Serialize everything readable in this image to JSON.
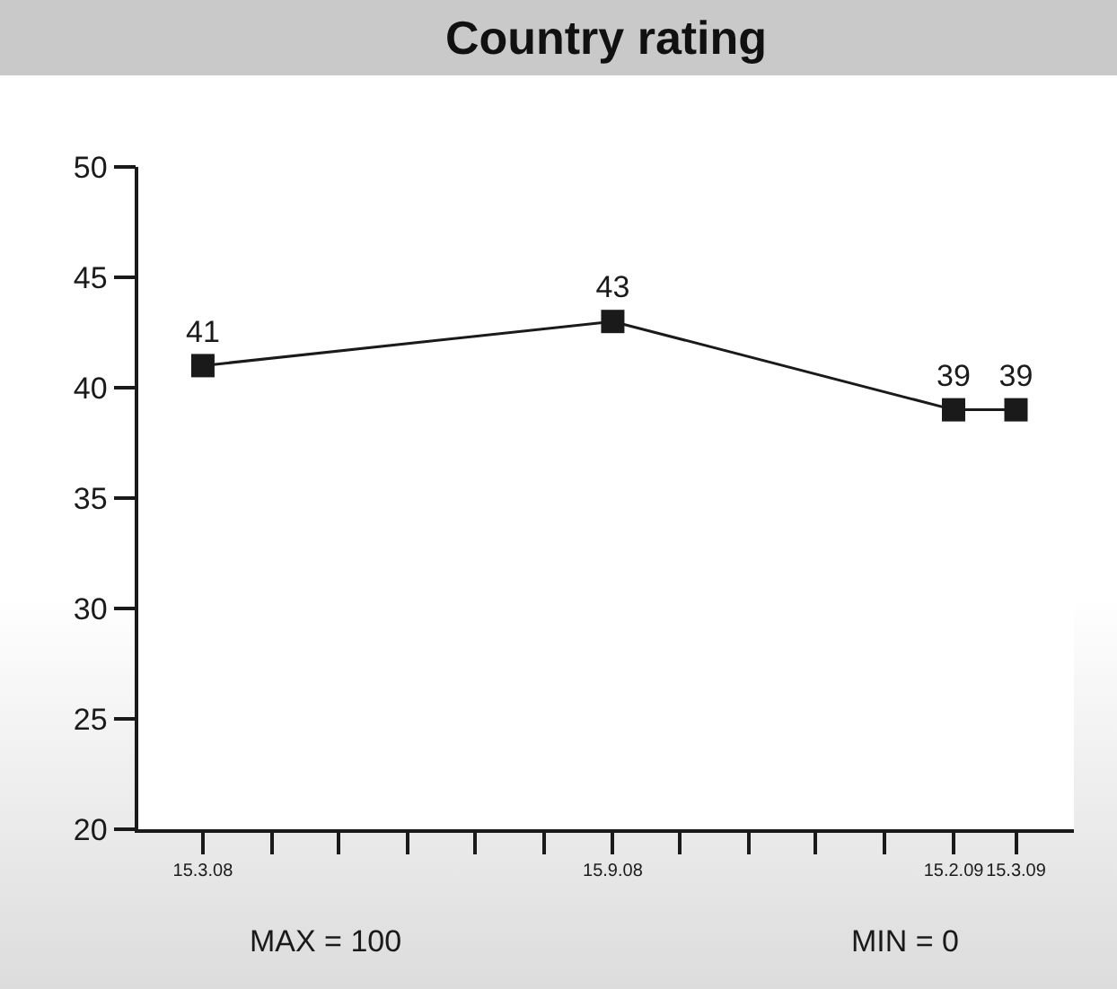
{
  "chart_data": {
    "type": "line",
    "title": "Country rating",
    "x": [
      "2008-03-15",
      "2008-09-15",
      "2009-02-15",
      "2009-03-15"
    ],
    "series": [
      {
        "color": "#1a1a1a",
        "values": [
          41,
          43,
          39,
          39
        ]
      }
    ],
    "data_labels": true,
    "marker": "square",
    "line_style": "solid",
    "grid": false,
    "xlim": [
      "2008-02-15",
      "2009-04-10"
    ],
    "xticks": [
      {
        "value": "2008-03-15",
        "label": "15.3.08"
      },
      {
        "value": "2008-04-15",
        "label": null
      },
      {
        "value": "2008-05-15",
        "label": null
      },
      {
        "value": "2008-06-15",
        "label": null
      },
      {
        "value": "2008-07-15",
        "label": null
      },
      {
        "value": "2008-08-15",
        "label": null
      },
      {
        "value": "2008-09-15",
        "label": "15.9.08"
      },
      {
        "value": "2008-10-15",
        "label": null
      },
      {
        "value": "2008-11-15",
        "label": null
      },
      {
        "value": "2008-12-15",
        "label": null
      },
      {
        "value": "2009-01-15",
        "label": null
      },
      {
        "value": "2009-02-15",
        "label": "15.2.09"
      },
      {
        "value": "2009-03-15",
        "label": "15.3.09"
      }
    ],
    "ylim": [
      20,
      50
    ],
    "yticks": [
      20,
      25,
      30,
      35,
      40,
      45,
      50
    ],
    "annotations": [
      "MAX = 100",
      "MIN = 0"
    ]
  }
}
